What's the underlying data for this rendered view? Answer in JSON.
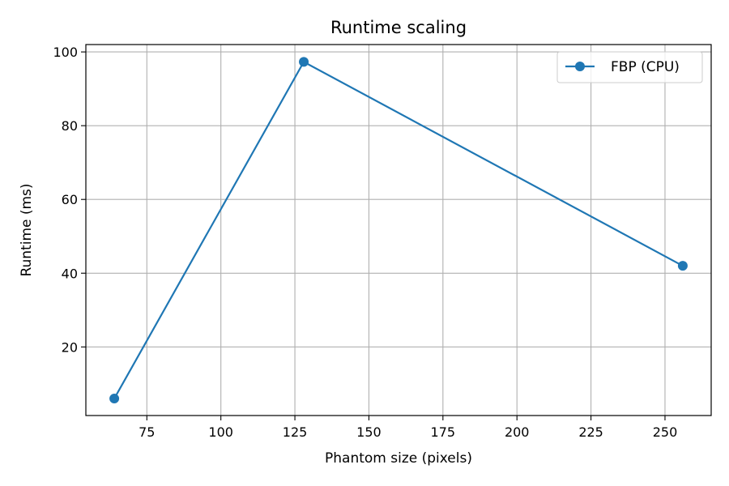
{
  "chart_data": {
    "type": "line",
    "title": "Runtime scaling",
    "xlabel": "Phantom size (pixels)",
    "ylabel": "Runtime (ms)",
    "xlim": [
      54.4,
      265.6
    ],
    "ylim": [
      1.4,
      102.0
    ],
    "xticks": [
      75,
      100,
      125,
      150,
      175,
      200,
      225,
      250
    ],
    "yticks": [
      20,
      40,
      60,
      80,
      100
    ],
    "grid": true,
    "legend_position": "top-right",
    "series": [
      {
        "name": "FBP (CPU)",
        "color": "#1f77b4",
        "marker": "circle",
        "x": [
          64,
          128,
          256
        ],
        "y": [
          6.0,
          97.3,
          42.0
        ]
      }
    ]
  }
}
